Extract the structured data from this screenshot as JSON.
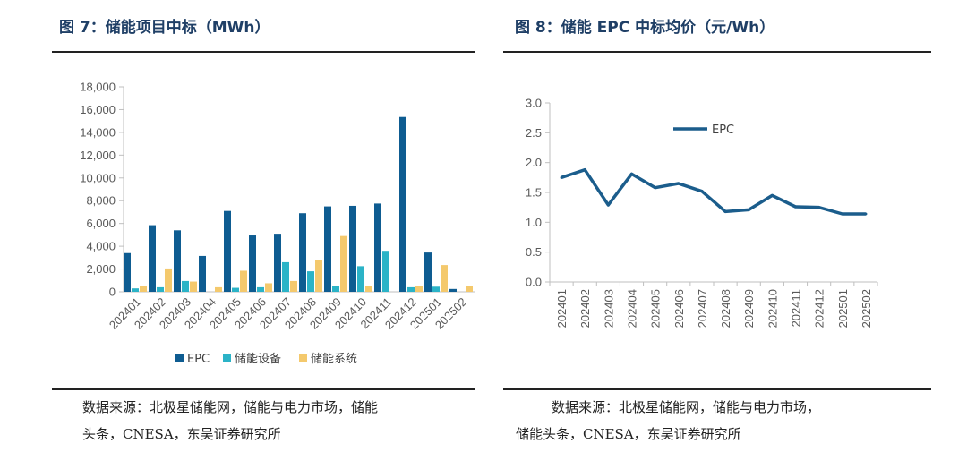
{
  "left": {
    "title": "图 7：储能项目中标（MWh）",
    "source_line1": "数据来源：北极星储能网，储能与电力市场，储能",
    "source_line2": "头条，CNESA，东吴证券研究所"
  },
  "right": {
    "title": "图 8：储能 EPC 中标均价（元/Wh）",
    "source_line1": "数据来源：北极星储能网，储能与电力市场，",
    "source_line2": "储能头条，CNESA，东吴证券研究所"
  },
  "chart_data": [
    {
      "type": "bar",
      "categories": [
        "202401",
        "202402",
        "202403",
        "202404",
        "202405",
        "202406",
        "202407",
        "202408",
        "202409",
        "202410",
        "202411",
        "202412",
        "202501",
        "202502"
      ],
      "series": [
        {
          "name": "EPC",
          "color": "#0e5c91",
          "values": [
            3400,
            5850,
            5400,
            3150,
            7100,
            4950,
            5100,
            6900,
            7500,
            7550,
            7750,
            15350,
            3450,
            250
          ]
        },
        {
          "name": "储能设备",
          "color": "#2bb3c7",
          "values": [
            300,
            400,
            950,
            0,
            350,
            400,
            2600,
            1800,
            550,
            2250,
            3600,
            400,
            450,
            0
          ]
        },
        {
          "name": "储能系统",
          "color": "#f4c96d",
          "values": [
            500,
            2050,
            900,
            400,
            1850,
            750,
            950,
            2800,
            4900,
            500,
            0,
            500,
            2350,
            500
          ]
        }
      ],
      "ylim": [
        0,
        18000
      ],
      "yticks": [
        "0",
        "2,000",
        "4,000",
        "6,000",
        "8,000",
        "10,000",
        "12,000",
        "14,000",
        "16,000",
        "18,000"
      ],
      "legend_position": "bottom"
    },
    {
      "type": "line",
      "x": [
        "202401",
        "202402",
        "202403",
        "202404",
        "202405",
        "202406",
        "202407",
        "202408",
        "202409",
        "202410",
        "202411",
        "202412",
        "202501",
        "202502"
      ],
      "series": [
        {
          "name": "EPC",
          "color": "#1b5d8c",
          "values": [
            1.75,
            1.88,
            1.29,
            1.81,
            1.58,
            1.65,
            1.52,
            1.18,
            1.21,
            1.45,
            1.26,
            1.25,
            1.14,
            1.14
          ]
        }
      ],
      "ylim": [
        0,
        3.0
      ],
      "yticks": [
        "0.0",
        "0.5",
        "1.0",
        "1.5",
        "2.0",
        "2.5",
        "3.0"
      ],
      "legend_position": "top-left"
    }
  ]
}
